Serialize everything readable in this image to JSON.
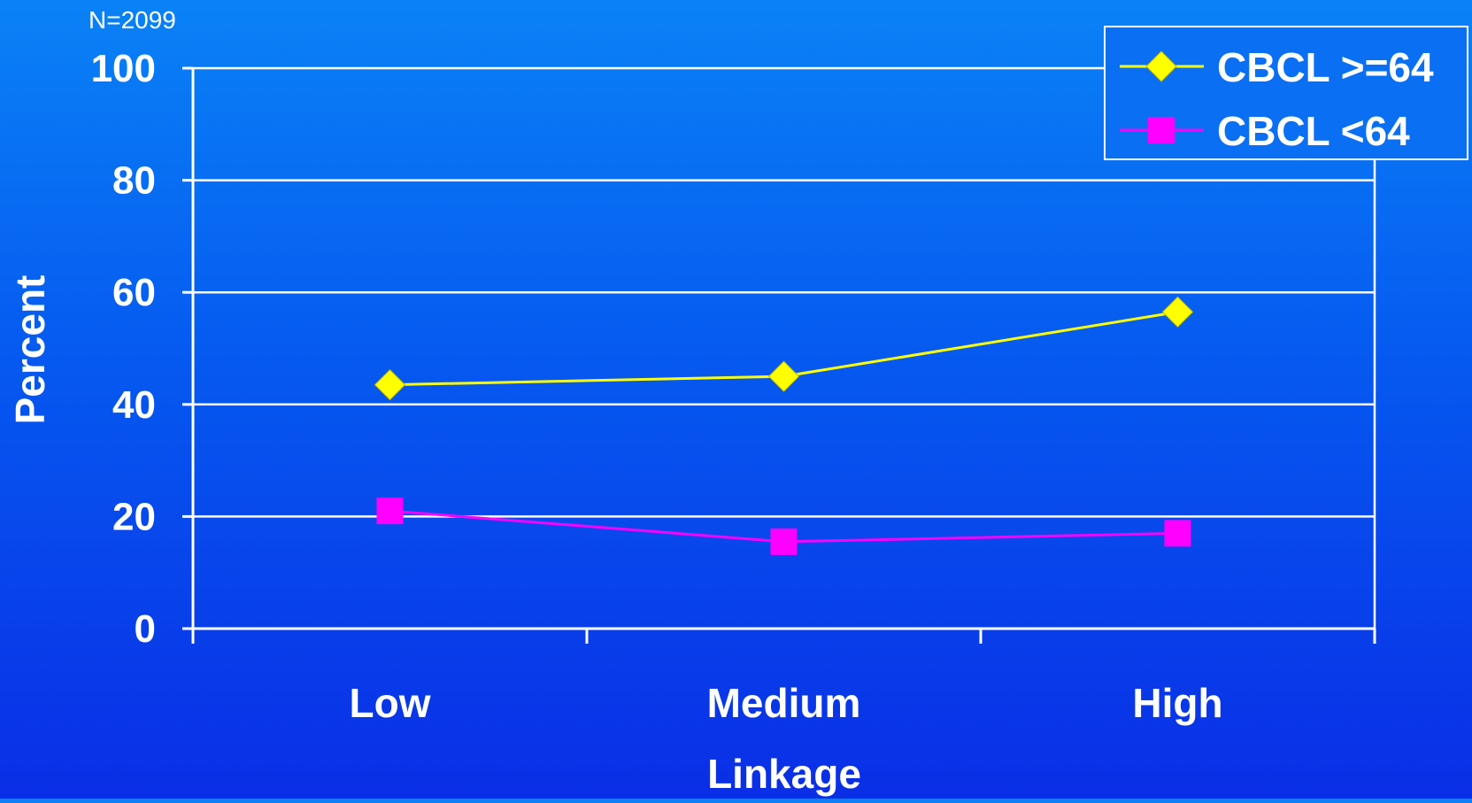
{
  "chart_data": {
    "type": "line",
    "note": "N=2099",
    "categories": [
      "Low",
      "Medium",
      "High"
    ],
    "series": [
      {
        "name": "CBCL >=64",
        "values": [
          43.5,
          45,
          56.5
        ],
        "color": "#ffff00",
        "marker": "diamond"
      },
      {
        "name": "CBCL <64",
        "values": [
          21,
          15.5,
          17
        ],
        "color": "#ff00ff",
        "marker": "square"
      }
    ],
    "xlabel": "Linkage",
    "ylabel": "Percent",
    "ylim": [
      0,
      100
    ],
    "yticks": [
      "0",
      "20",
      "40",
      "60",
      "80",
      "100"
    ],
    "grid": true,
    "legend_position": "top-right",
    "axis_color": "#ffffff"
  }
}
